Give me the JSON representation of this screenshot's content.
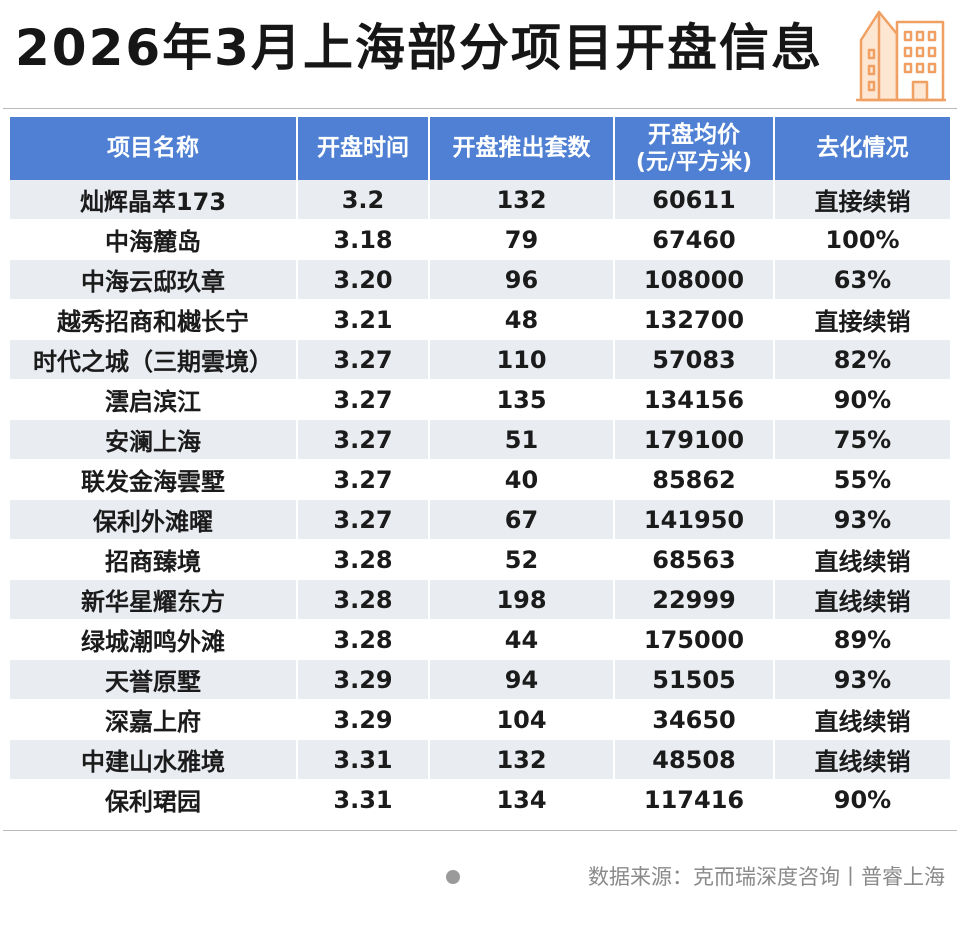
{
  "title": "2026年3月上海部分项目开盘信息",
  "icon": "city-buildings-icon",
  "colors": {
    "header_bg": "#4f80d3",
    "row_alt_bg": "#e9ecf1",
    "icon_stroke": "#f0a063",
    "icon_fill": "#fde6d2"
  },
  "table": {
    "headers": [
      {
        "label": "项目名称"
      },
      {
        "label": "开盘时间"
      },
      {
        "label": "开盘推出套数"
      },
      {
        "label": "开盘均价",
        "sub": "(元/平方米)"
      },
      {
        "label": "去化情况"
      }
    ],
    "rows": [
      [
        "灿辉晶萃173",
        "3.2",
        "132",
        "60611",
        "直接续销"
      ],
      [
        "中海麓岛",
        "3.18",
        "79",
        "67460",
        "100%"
      ],
      [
        "中海云邸玖章",
        "3.20",
        "96",
        "108000",
        "63%"
      ],
      [
        "越秀招商和樾长宁",
        "3.21",
        "48",
        "132700",
        "直接续销"
      ],
      [
        "时代之城（三期雲境）",
        "3.27",
        "110",
        "57083",
        "82%"
      ],
      [
        "澐启滨江",
        "3.27",
        "135",
        "134156",
        "90%"
      ],
      [
        "安澜上海",
        "3.27",
        "51",
        "179100",
        "75%"
      ],
      [
        "联发金海雲墅",
        "3.27",
        "40",
        "85862",
        "55%"
      ],
      [
        "保利外滩曜",
        "3.27",
        "67",
        "141950",
        "93%"
      ],
      [
        "招商臻境",
        "3.28",
        "52",
        "68563",
        "直线续销"
      ],
      [
        "新华星耀东方",
        "3.28",
        "198",
        "22999",
        "直线续销"
      ],
      [
        "绿城潮鸣外滩",
        "3.28",
        "44",
        "175000",
        "89%"
      ],
      [
        "天誉原墅",
        "3.29",
        "94",
        "51505",
        "93%"
      ],
      [
        "深嘉上府",
        "3.29",
        "104",
        "34650",
        "直线续销"
      ],
      [
        "中建山水雅境",
        "3.31",
        "132",
        "48508",
        "直线续销"
      ],
      [
        "保利珺园",
        "3.31",
        "134",
        "117416",
        "90%"
      ]
    ]
  },
  "footer": {
    "source": "数据来源：克而瑞深度咨询丨普睿上海"
  }
}
